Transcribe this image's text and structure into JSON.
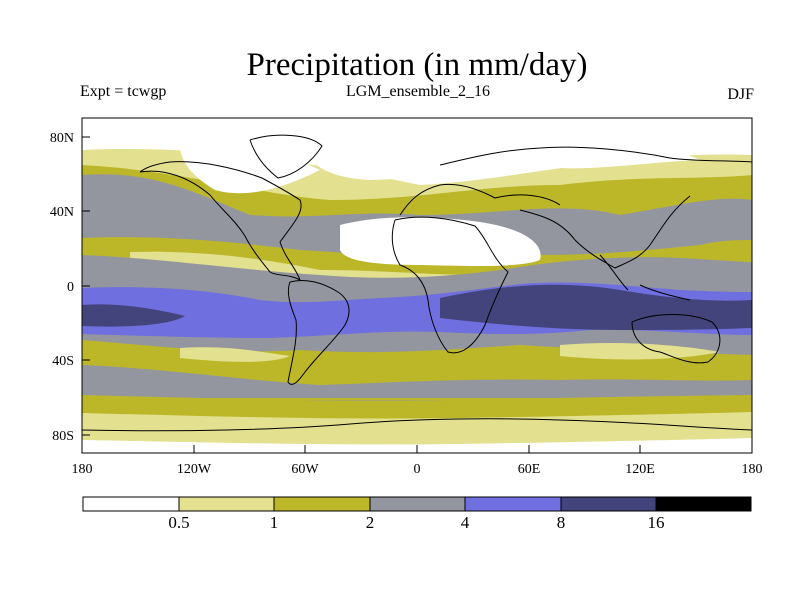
{
  "header": {
    "title": "Precipitation (in mm/day)",
    "experiment": "Expt = tcwgp",
    "dataset": "LGM_ensemble_2_16",
    "season": "DJF"
  },
  "map": {
    "lat_labels": [
      "80N",
      "40N",
      "0",
      "40S",
      "80S"
    ],
    "lon_labels": [
      "180",
      "120W",
      "60W",
      "0",
      "60E",
      "120E",
      "180"
    ],
    "projection": "cylindrical equidistant",
    "lon_range": [
      -180,
      180
    ],
    "lat_range": [
      -90,
      90
    ]
  },
  "colorbar": {
    "thresholds": [
      "0.5",
      "1",
      "2",
      "4",
      "8",
      "16"
    ],
    "colors": [
      "#ffffff",
      "#e3e08f",
      "#bcb728",
      "#94969f",
      "#6f6fdf",
      "#44447c",
      "#000000"
    ]
  }
}
